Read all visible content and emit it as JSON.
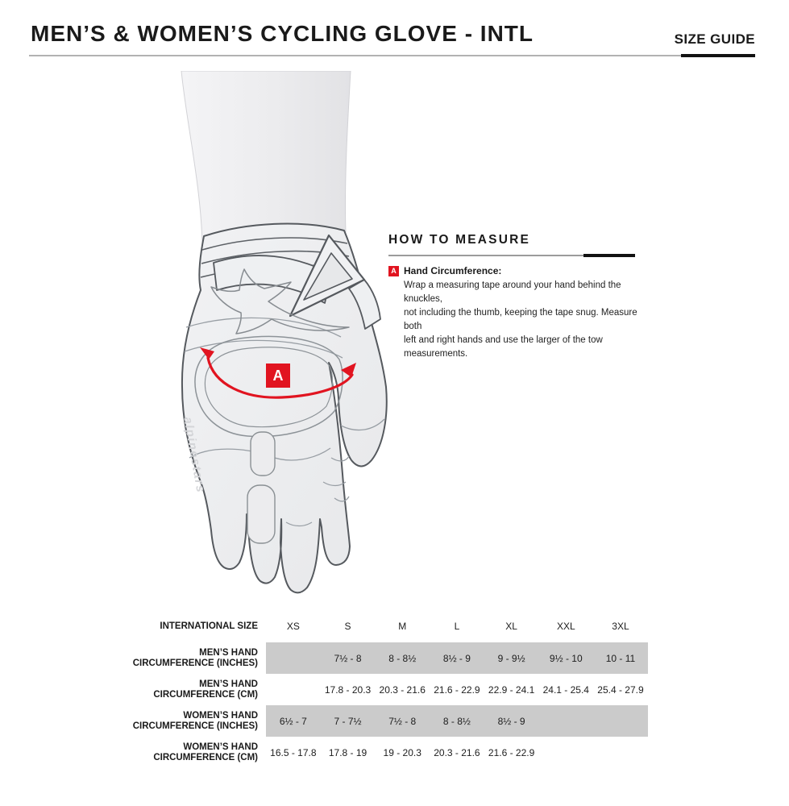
{
  "header": {
    "title": "MEN’S & WOMEN’S CYCLING GLOVE - INTL",
    "size_guide_label": "SIZE GUIDE"
  },
  "illustration": {
    "marker_letter": "A",
    "brand_text": "alpinestars"
  },
  "how_to_measure": {
    "heading": "HOW TO MEASURE",
    "items": [
      {
        "marker": "A",
        "label": "Hand Circumference:",
        "description_lines": [
          "Wrap a measuring tape around your hand behind the knuckles,",
          "not including the thumb, keeping the tape snug. Measure both",
          "left and right hands and use the larger of the tow measurements."
        ]
      }
    ]
  },
  "size_table": {
    "header_label": "INTERNATIONAL SIZE",
    "sizes": [
      "XS",
      "S",
      "M",
      "L",
      "XL",
      "XXL",
      "3XL"
    ],
    "rows": [
      {
        "label_lines": [
          "MEN’S HAND",
          "CIRCUMFERENCE (INCHES)"
        ],
        "shaded": true,
        "values": [
          "",
          "7½ - 8",
          "8 - 8½",
          "8½ - 9",
          "9 - 9½",
          "9½ - 10",
          "10 - 11"
        ]
      },
      {
        "label_lines": [
          "MEN’S HAND",
          "CIRCUMFERENCE (CM)"
        ],
        "shaded": false,
        "values": [
          "",
          "17.8 - 20.3",
          "20.3 - 21.6",
          "21.6 - 22.9",
          "22.9 - 24.1",
          "24.1 - 25.4",
          "25.4 - 27.9"
        ]
      },
      {
        "label_lines": [
          "WOMEN’S HAND",
          "CIRCUMFERENCE (INCHES)"
        ],
        "shaded": true,
        "values": [
          "6½ - 7",
          "7 - 7½",
          "7½ - 8",
          "8 - 8½",
          "8½ - 9",
          "",
          ""
        ]
      },
      {
        "label_lines": [
          "WOMEN’S HAND",
          "CIRCUMFERENCE (CM)"
        ],
        "shaded": false,
        "values": [
          "16.5 - 17.8",
          "17.8 - 19",
          "19 - 20.3",
          "20.3 - 21.6",
          "21.6 - 22.9",
          "",
          ""
        ]
      }
    ]
  },
  "colors": {
    "accent_red": "#e11420",
    "shaded_row": "#cbcbcb"
  }
}
